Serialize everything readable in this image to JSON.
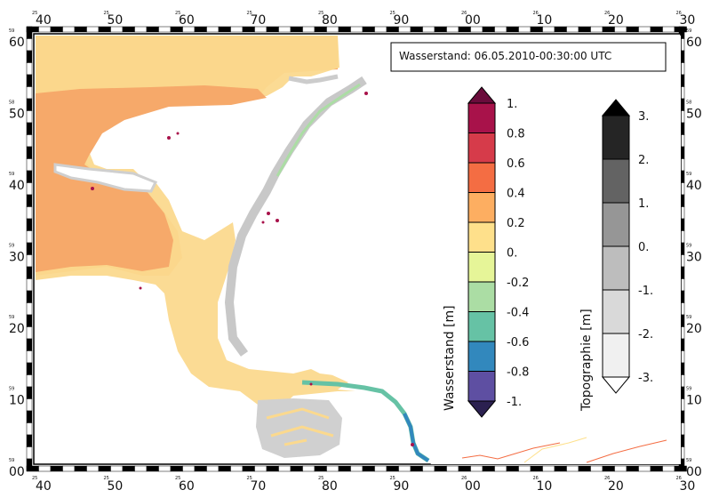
{
  "title": "Wasserstand: 06.05.2010-00:30:00 UTC",
  "axes": {
    "x_ticks": [
      {
        "big": "40",
        "small": "25",
        "small2": "000"
      },
      {
        "big": "50",
        "small": "25",
        "small2": "000"
      },
      {
        "big": "60",
        "small": "25",
        "small2": "000"
      },
      {
        "big": "70",
        "small": "25",
        "small2": "000"
      },
      {
        "big": "80",
        "small": "25",
        "small2": "000"
      },
      {
        "big": "90",
        "small": "25",
        "small2": "000"
      },
      {
        "big": "00",
        "small": "26",
        "small2": "000"
      },
      {
        "big": "10",
        "small": "26",
        "small2": "000"
      },
      {
        "big": "20",
        "small": "26",
        "small2": "000"
      },
      {
        "big": "30",
        "small": "26",
        "small2": "000"
      }
    ],
    "y_ticks": [
      {
        "big": "60",
        "small": "59",
        "small2": "000"
      },
      {
        "big": "50",
        "small": "58",
        "small2": "000"
      },
      {
        "big": "40",
        "small": "59",
        "small2": "000"
      },
      {
        "big": "30",
        "small": "59",
        "small2": "000"
      },
      {
        "big": "20",
        "small": "59",
        "small2": "000"
      },
      {
        "big": "10",
        "small": "59",
        "small2": "000"
      },
      {
        "big": "00",
        "small": "59",
        "small2": "000"
      }
    ]
  },
  "legend_water": {
    "title": "Wasserstand [m]",
    "labels": [
      "1.",
      "0.8",
      "0.6",
      "0.4",
      "0.2",
      "0.",
      "-0.2",
      "-0.4",
      "-0.6",
      "-0.8",
      "-1."
    ],
    "colors": [
      "#6a0c3b",
      "#a8124a",
      "#d63b4a",
      "#f46d43",
      "#fdae61",
      "#fee08b",
      "#e6f598",
      "#abdda4",
      "#66c2a5",
      "#3288bd",
      "#5e4fa2",
      "#2b2050"
    ]
  },
  "legend_topo": {
    "title": "Topographie [m]",
    "labels": [
      "3.",
      "2.",
      "1.",
      "0.",
      "-1.",
      "-2.",
      "-3."
    ],
    "colors": [
      "#000000",
      "#252525",
      "#636363",
      "#969696",
      "#bdbdbd",
      "#d9d9d9",
      "#f0f0f0",
      "#ffffff"
    ]
  },
  "colors": {
    "deep_orange": "#f6a96a",
    "shallow_yellow": "#fbd98e",
    "land_grey": "#c8c8c8",
    "frame": "#000000"
  }
}
